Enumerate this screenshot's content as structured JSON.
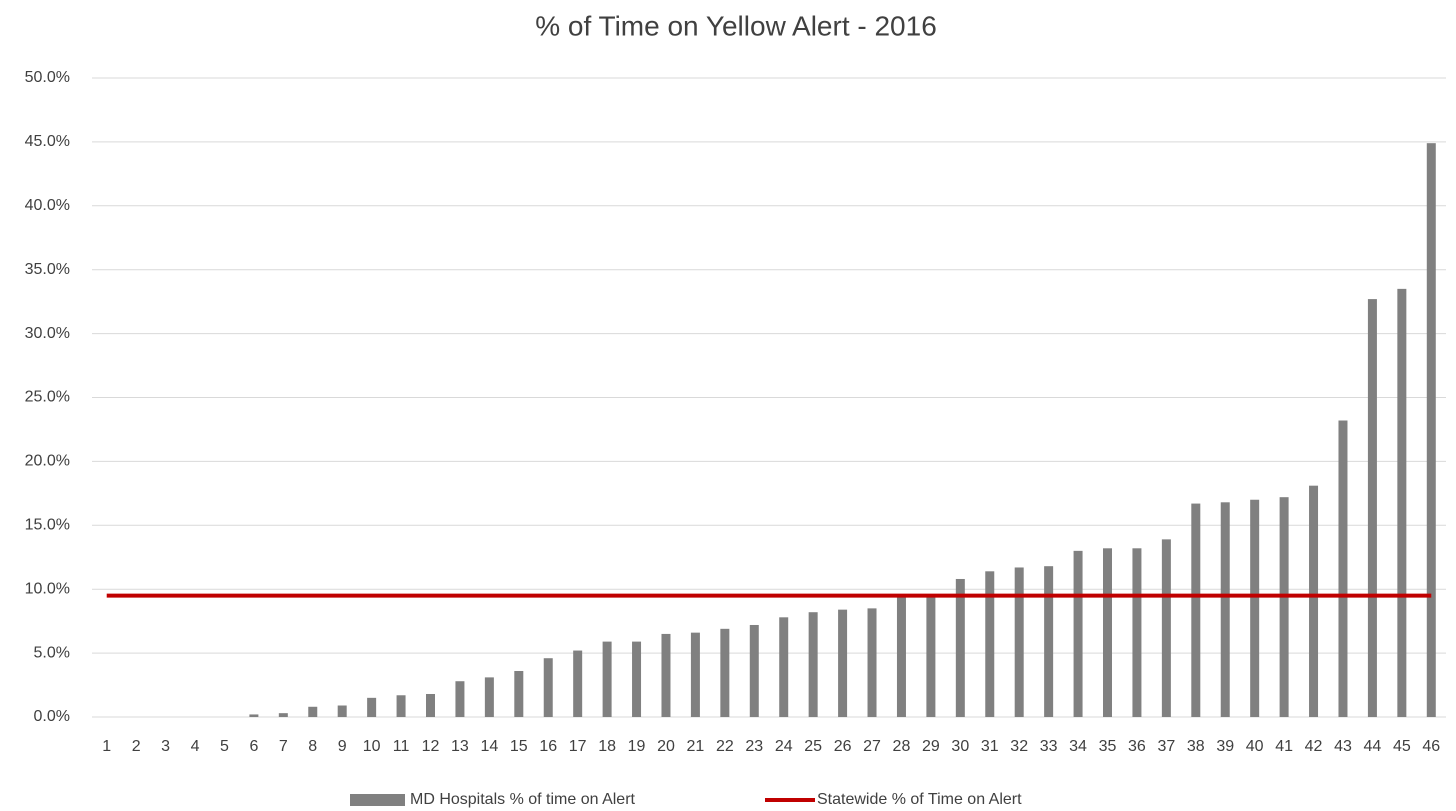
{
  "chart_data": {
    "type": "bar",
    "title": "% of Time on Yellow Alert - 2016",
    "categories": [
      "1",
      "2",
      "3",
      "4",
      "5",
      "6",
      "7",
      "8",
      "9",
      "10",
      "11",
      "12",
      "13",
      "14",
      "15",
      "16",
      "17",
      "18",
      "19",
      "20",
      "21",
      "22",
      "23",
      "24",
      "25",
      "26",
      "27",
      "28",
      "29",
      "30",
      "31",
      "32",
      "33",
      "34",
      "35",
      "36",
      "37",
      "38",
      "39",
      "40",
      "41",
      "42",
      "43",
      "44",
      "45",
      "46"
    ],
    "series": [
      {
        "name": "MD Hospitals % of time on Alert",
        "type": "bar",
        "color": "#808080",
        "values": [
          0,
          0,
          0,
          0,
          0,
          0.2,
          0.3,
          0.8,
          0.9,
          1.5,
          1.7,
          1.8,
          2.8,
          3.1,
          3.6,
          4.6,
          5.2,
          5.9,
          5.9,
          6.5,
          6.6,
          6.9,
          7.2,
          7.8,
          8.2,
          8.4,
          8.5,
          9.5,
          9.5,
          10.8,
          11.4,
          11.7,
          11.8,
          13.0,
          13.2,
          13.2,
          13.9,
          16.7,
          16.8,
          17.0,
          17.2,
          18.1,
          23.2,
          32.7,
          33.5,
          44.9
        ]
      },
      {
        "name": "Statewide % of Time on Alert",
        "type": "line",
        "color": "#c00000",
        "values": [
          9.5,
          9.5,
          9.5,
          9.5,
          9.5,
          9.5,
          9.5,
          9.5,
          9.5,
          9.5,
          9.5,
          9.5,
          9.5,
          9.5,
          9.5,
          9.5,
          9.5,
          9.5,
          9.5,
          9.5,
          9.5,
          9.5,
          9.5,
          9.5,
          9.5,
          9.5,
          9.5,
          9.5,
          9.5,
          9.5,
          9.5,
          9.5,
          9.5,
          9.5,
          9.5,
          9.5,
          9.5,
          9.5,
          9.5,
          9.5,
          9.5,
          9.5,
          9.5,
          9.5,
          9.5,
          9.5
        ]
      }
    ],
    "ylim": [
      0,
      50
    ],
    "yticks": [
      {
        "value": 0,
        "label": "0.0%"
      },
      {
        "value": 5,
        "label": "5.0%"
      },
      {
        "value": 10,
        "label": "10.0%"
      },
      {
        "value": 15,
        "label": "15.0%"
      },
      {
        "value": 20,
        "label": "20.0%"
      },
      {
        "value": 25,
        "label": "25.0%"
      },
      {
        "value": 30,
        "label": "30.0%"
      },
      {
        "value": 35,
        "label": "35.0%"
      },
      {
        "value": 40,
        "label": "40.0%"
      },
      {
        "value": 45,
        "label": "45.0%"
      },
      {
        "value": 50,
        "label": "50.0%"
      }
    ],
    "grid": true,
    "legend": "bottom"
  }
}
